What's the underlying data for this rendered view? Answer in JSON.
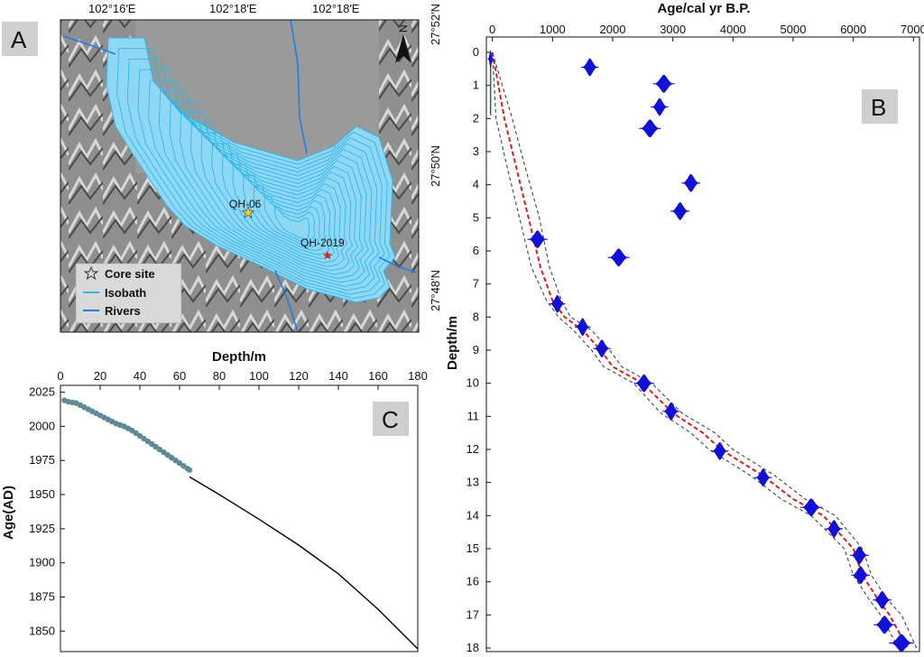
{
  "map": {
    "letter": "A",
    "top_labels": [
      "102°16′E",
      "102°18′E",
      "102°18′E"
    ],
    "right_labels": [
      "27°52′N",
      "27°50′N",
      "27°48′N"
    ],
    "north_label": "N",
    "cores": [
      {
        "name": "QH-06",
        "color": "#e8d23a"
      },
      {
        "name": "QH-2019",
        "color": "#d42020"
      }
    ],
    "legend": [
      {
        "label": "Core site",
        "symbol": "star-icon"
      },
      {
        "label": "Isobath",
        "color": "#33b5e5"
      },
      {
        "label": "Rivers",
        "color": "#1f7fe0"
      }
    ],
    "colors": {
      "lake": "#8fd8f5",
      "isobath": "#33b5e5",
      "river": "#1f7fe0",
      "terrain": "#8c8c8c"
    }
  },
  "chart_data": [
    {
      "type": "line",
      "letter": "B",
      "xlabel": "Age/cal yr B.P.",
      "ylabel": "Depth/m",
      "xlim": [
        -100,
        7100
      ],
      "ylim": [
        18.1,
        0
      ],
      "xticks": [
        0,
        1000,
        2000,
        3000,
        4000,
        5000,
        6000,
        7000
      ],
      "yticks": [
        0,
        1,
        2,
        3,
        4,
        5,
        6,
        7,
        8,
        9,
        10,
        11,
        12,
        13,
        14,
        15,
        16,
        17,
        18
      ],
      "x_axis_position": "top",
      "series": [
        {
          "style": "dashed-red-median",
          "color": "#d42020",
          "points": [
            [
              0,
              0
            ],
            [
              200,
              2
            ],
            [
              400,
              3.5
            ],
            [
              600,
              5
            ],
            [
              800,
              6.5
            ],
            [
              1000,
              7.5
            ],
            [
              1200,
              8
            ],
            [
              1500,
              8.4
            ],
            [
              1800,
              9
            ],
            [
              2000,
              9.5
            ],
            [
              2500,
              10
            ],
            [
              3000,
              10.9
            ],
            [
              3500,
              11.5
            ],
            [
              3800,
              12
            ],
            [
              4500,
              12.8
            ],
            [
              5000,
              13.5
            ],
            [
              5500,
              14
            ],
            [
              6000,
              15
            ],
            [
              6150,
              15.8
            ],
            [
              6400,
              16.5
            ],
            [
              6600,
              17
            ],
            [
              6900,
              18
            ]
          ]
        },
        {
          "style": "dashed-gray-lower",
          "color": "#444444",
          "points": [
            [
              0,
              0
            ],
            [
              60,
              2
            ],
            [
              250,
              3.5
            ],
            [
              450,
              5
            ],
            [
              650,
              6.5
            ],
            [
              900,
              7.5
            ],
            [
              1100,
              8
            ],
            [
              1350,
              8.4
            ],
            [
              1650,
              9
            ],
            [
              1850,
              9.5
            ],
            [
              2350,
              10
            ],
            [
              2800,
              10.9
            ],
            [
              3300,
              11.5
            ],
            [
              3600,
              12
            ],
            [
              4300,
              12.8
            ],
            [
              4800,
              13.5
            ],
            [
              5300,
              14
            ],
            [
              5850,
              15
            ],
            [
              6000,
              15.8
            ],
            [
              6250,
              16.5
            ],
            [
              6450,
              17
            ],
            [
              6750,
              18
            ]
          ]
        },
        {
          "style": "dashed-gray-upper",
          "color": "#444444",
          "points": [
            [
              0,
              0
            ],
            [
              330,
              2
            ],
            [
              550,
              3.5
            ],
            [
              780,
              5
            ],
            [
              950,
              6.5
            ],
            [
              1150,
              7.5
            ],
            [
              1300,
              8
            ],
            [
              1650,
              8.4
            ],
            [
              1950,
              9
            ],
            [
              2150,
              9.5
            ],
            [
              2650,
              10
            ],
            [
              3150,
              10.9
            ],
            [
              3700,
              11.5
            ],
            [
              4000,
              12
            ],
            [
              4700,
              12.8
            ],
            [
              5200,
              13.5
            ],
            [
              5700,
              14
            ],
            [
              6150,
              15
            ],
            [
              6300,
              15.8
            ],
            [
              6550,
              16.5
            ],
            [
              6800,
              17
            ],
            [
              7050,
              18
            ]
          ]
        }
      ],
      "dates": [
        {
          "age": -30,
          "depth": 0.2,
          "spread": 40
        },
        {
          "age": 1620,
          "depth": 0.45,
          "spread": 120
        },
        {
          "age": 2850,
          "depth": 0.95,
          "spread": 150
        },
        {
          "age": 2780,
          "depth": 1.65,
          "spread": 120
        },
        {
          "age": 2620,
          "depth": 2.3,
          "spread": 150
        },
        {
          "age": 3300,
          "depth": 3.95,
          "spread": 130
        },
        {
          "age": 3120,
          "depth": 4.8,
          "spread": 130
        },
        {
          "age": 750,
          "depth": 5.65,
          "spread": 140
        },
        {
          "age": 2100,
          "depth": 6.2,
          "spread": 150
        },
        {
          "age": 1080,
          "depth": 7.6,
          "spread": 110
        },
        {
          "age": 1500,
          "depth": 8.3,
          "spread": 110
        },
        {
          "age": 1820,
          "depth": 8.95,
          "spread": 120
        },
        {
          "age": 2520,
          "depth": 10.0,
          "spread": 140
        },
        {
          "age": 2970,
          "depth": 10.85,
          "spread": 120
        },
        {
          "age": 3780,
          "depth": 12.05,
          "spread": 120
        },
        {
          "age": 4500,
          "depth": 12.85,
          "spread": 120
        },
        {
          "age": 5300,
          "depth": 13.75,
          "spread": 150
        },
        {
          "age": 5680,
          "depth": 14.4,
          "spread": 120
        },
        {
          "age": 6100,
          "depth": 15.2,
          "spread": 130
        },
        {
          "age": 6120,
          "depth": 15.8,
          "spread": 130
        },
        {
          "age": 6480,
          "depth": 16.55,
          "spread": 130
        },
        {
          "age": 6520,
          "depth": 17.3,
          "spread": 150
        },
        {
          "age": 6800,
          "depth": 17.85,
          "spread": 170
        }
      ],
      "colors": {
        "dates": "#1010d8",
        "core_marker": "#1a6b5a"
      }
    },
    {
      "type": "scatter",
      "letter": "C",
      "xlabel": "Depth/m",
      "ylabel": "Age(AD)",
      "xlim": [
        0,
        180
      ],
      "ylim": [
        1835,
        2030
      ],
      "xticks": [
        0,
        20,
        40,
        60,
        80,
        100,
        120,
        140,
        160,
        180
      ],
      "yticks": [
        1850,
        1875,
        1900,
        1925,
        1950,
        1975,
        2000,
        2025
      ],
      "x_axis_position": "top",
      "points": [
        [
          2,
          2019
        ],
        [
          4,
          2018
        ],
        [
          6,
          2017.5
        ],
        [
          8,
          2017
        ],
        [
          10,
          2015.5
        ],
        [
          12,
          2014
        ],
        [
          14,
          2012.5
        ],
        [
          16,
          2011
        ],
        [
          18,
          2009.5
        ],
        [
          20,
          2008
        ],
        [
          22,
          2006.5
        ],
        [
          24,
          2005
        ],
        [
          26,
          2003.5
        ],
        [
          28,
          2002
        ],
        [
          30,
          2001
        ],
        [
          32,
          2000
        ],
        [
          34,
          1998.5
        ],
        [
          36,
          1997
        ],
        [
          38,
          1995
        ],
        [
          40,
          1993
        ],
        [
          42,
          1991
        ],
        [
          44,
          1989
        ],
        [
          46,
          1987
        ],
        [
          48,
          1985
        ],
        [
          50,
          1983
        ],
        [
          52,
          1981
        ],
        [
          54,
          1979
        ],
        [
          56,
          1977
        ],
        [
          58,
          1975
        ],
        [
          60,
          1973
        ],
        [
          62,
          1971
        ],
        [
          64,
          1969
        ],
        [
          65,
          1968
        ]
      ],
      "line": [
        [
          65,
          1963
        ],
        [
          80,
          1950
        ],
        [
          100,
          1932
        ],
        [
          120,
          1913
        ],
        [
          140,
          1892
        ],
        [
          160,
          1866
        ],
        [
          180,
          1837
        ]
      ],
      "colors": {
        "points": "#5e8a94",
        "line": "#000000"
      }
    }
  ]
}
